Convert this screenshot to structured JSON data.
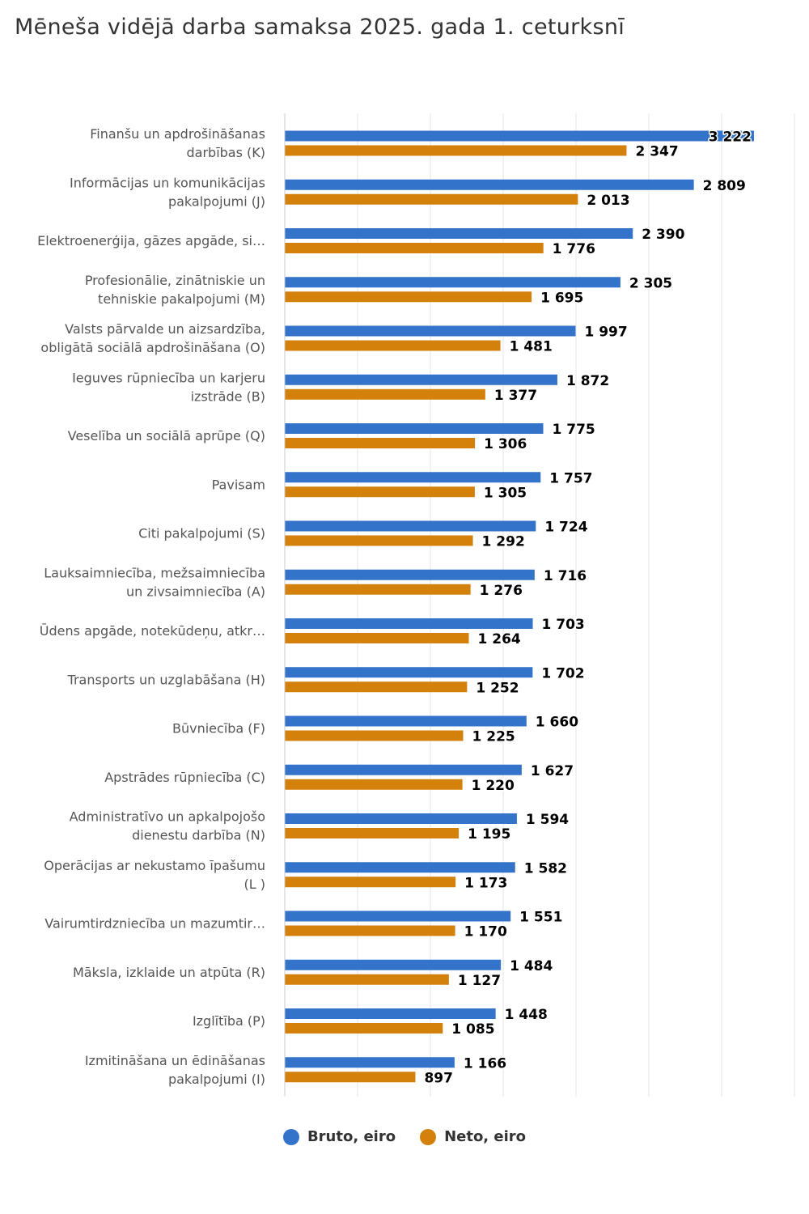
{
  "title": "Mēneša vidējā darba samaksa 2025. gada 1. ceturksnī",
  "colors": {
    "bruto": "#3373c9",
    "neto": "#d4810c",
    "grid": "#e6e6e6"
  },
  "chart_data": {
    "type": "bar",
    "orientation": "horizontal",
    "title": "Mēneša vidējā darba samaksa 2025. gada 1. ceturksnī",
    "xlim": [
      0,
      3500
    ],
    "grid": true,
    "legend_position": "bottom",
    "categories": [
      "Finanšu un apdrošināšanas darbības (K)",
      "Informācijas un komunikācijas pakalpojumi (J)",
      "Elektroenerģija, gāzes apgāde, si…",
      "Profesionālie, zinātniskie un tehniskie pakalpojumi (M)",
      "Valsts pārvalde un aizsardzība, obligātā sociālā apdrošināšana (O)",
      "Ieguves rūpniecība un karjeru izstrāde (B)",
      "Veselība un sociālā aprūpe (Q)",
      "Pavisam",
      "Citi pakalpojumi (S)",
      "Lauksaimniecība, mežsaimniecība un zivsaimniecība (A)",
      "Ūdens apgāde, notekūdeņu, atkr…",
      "Transports un uzglabāšana (H)",
      "Būvniecība (F)",
      "Apstrādes rūpniecība (C)",
      "Administratīvo un apkalpojošo dienestu darbība (N)",
      "Operācijas ar nekustamo īpašumu (L )",
      "Vairumtirdzniecība un mazumtir…",
      "Māksla, izklaide un atpūta (R)",
      "Izglītība (P)",
      "Izmitināšana un ēdināšanas pakalpojumi (I)"
    ],
    "category_lines": [
      [
        "Finanšu un apdrošināšanas",
        "darbības (K)"
      ],
      [
        "Informācijas un komunikācijas",
        "pakalpojumi (J)"
      ],
      [
        "Elektroenerģija, gāzes apgāde, si…"
      ],
      [
        "Profesionālie, zinātniskie un",
        "tehniskie pakalpojumi (M)"
      ],
      [
        "Valsts pārvalde un aizsardzība,",
        "obligātā sociālā apdrošināšana (O)"
      ],
      [
        "Ieguves rūpniecība un karjeru",
        "izstrāde (B)"
      ],
      [
        "Veselība un sociālā aprūpe (Q)"
      ],
      [
        "Pavisam"
      ],
      [
        "Citi pakalpojumi (S)"
      ],
      [
        "Lauksaimniecība, mežsaimniecība",
        "un zivsaimniecība (A)"
      ],
      [
        "Ūdens apgāde, notekūdeņu, atkr…"
      ],
      [
        "Transports un uzglabāšana (H)"
      ],
      [
        "Būvniecība (F)"
      ],
      [
        "Apstrādes rūpniecība (C)"
      ],
      [
        "Administratīvo un apkalpojošo",
        "dienestu darbība (N)"
      ],
      [
        "Operācijas ar nekustamo īpašumu",
        "(L )"
      ],
      [
        "Vairumtirdzniecība un mazumtir…"
      ],
      [
        "Māksla, izklaide un atpūta (R)"
      ],
      [
        "Izglītība (P)"
      ],
      [
        "Izmitināšana un ēdināšanas",
        "pakalpojumi (I)"
      ]
    ],
    "series": [
      {
        "name": "Bruto, eiro",
        "color": "#3373c9",
        "values": [
          3222,
          2809,
          2390,
          2305,
          1997,
          1872,
          1775,
          1757,
          1724,
          1716,
          1703,
          1702,
          1660,
          1627,
          1594,
          1582,
          1551,
          1484,
          1448,
          1166
        ],
        "labels": [
          "3 222",
          "2 809",
          "2 390",
          "2 305",
          "1 997",
          "1 872",
          "1 775",
          "1 757",
          "1 724",
          "1 716",
          "1 703",
          "1 702",
          "1 660",
          "1 627",
          "1 594",
          "1 582",
          "1 551",
          "1 484",
          "1 448",
          "1 166"
        ]
      },
      {
        "name": "Neto, eiro",
        "color": "#d4810c",
        "values": [
          2347,
          2013,
          1776,
          1695,
          1481,
          1377,
          1306,
          1305,
          1292,
          1276,
          1264,
          1252,
          1225,
          1220,
          1195,
          1173,
          1170,
          1127,
          1085,
          897
        ],
        "labels": [
          "2 347",
          "2 013",
          "1 776",
          "1 695",
          "1 481",
          "1 377",
          "1 306",
          "1 305",
          "1 292",
          "1 276",
          "1 264",
          "1 252",
          "1 225",
          "1 220",
          "1 195",
          "1 173",
          "1 170",
          "1 127",
          "1 085",
          "897"
        ]
      }
    ]
  },
  "legend": {
    "items": [
      {
        "label": "Bruto, eiro"
      },
      {
        "label": "Neto, eiro"
      }
    ]
  }
}
